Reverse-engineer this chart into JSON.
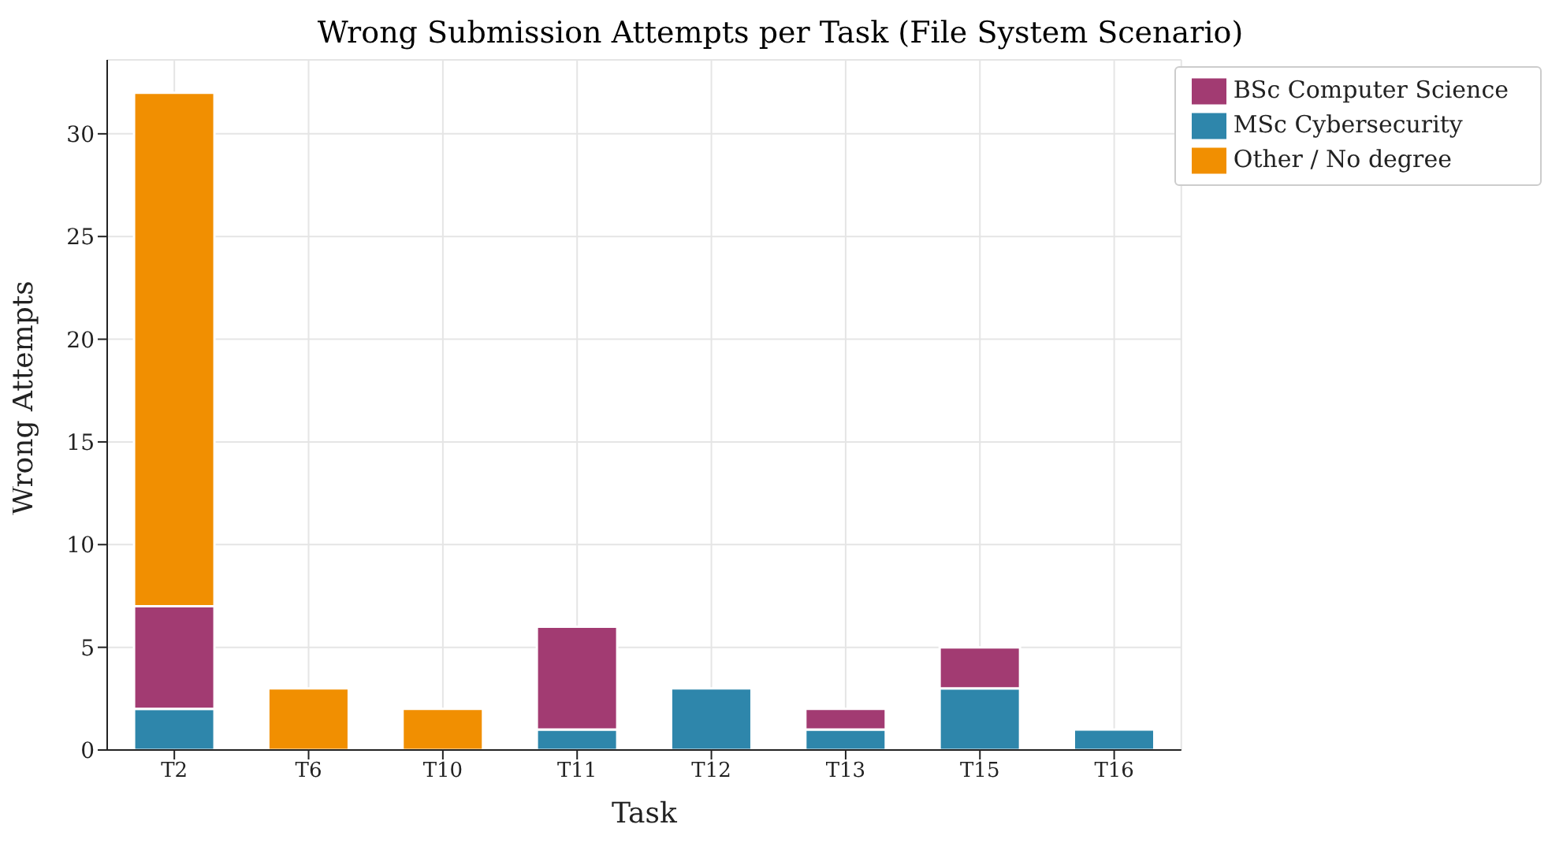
{
  "chart_data": {
    "type": "bar",
    "title": "Wrong Submission Attempts per Task (File System Scenario)",
    "xlabel": "Task",
    "ylabel": "Wrong Attempts",
    "categories": [
      "T2",
      "T6",
      "T10",
      "T11",
      "T12",
      "T13",
      "T15",
      "T16"
    ],
    "series": [
      {
        "name": "MSc Cybersecurity",
        "color": "#2e86ab",
        "values": [
          2,
          0,
          0,
          1,
          3,
          1,
          3,
          1
        ]
      },
      {
        "name": "BSc Computer Science",
        "color": "#a23b72",
        "values": [
          5,
          0,
          0,
          5,
          0,
          1,
          2,
          0
        ]
      },
      {
        "name": "Other / No degree",
        "color": "#f18f01",
        "values": [
          25,
          3,
          2,
          0,
          0,
          0,
          0,
          0
        ]
      }
    ],
    "stacked": true,
    "ylim": [
      0,
      33.6
    ],
    "yticks": [
      0,
      5,
      10,
      15,
      20,
      25,
      30
    ],
    "grid": true,
    "legend": "top right"
  }
}
